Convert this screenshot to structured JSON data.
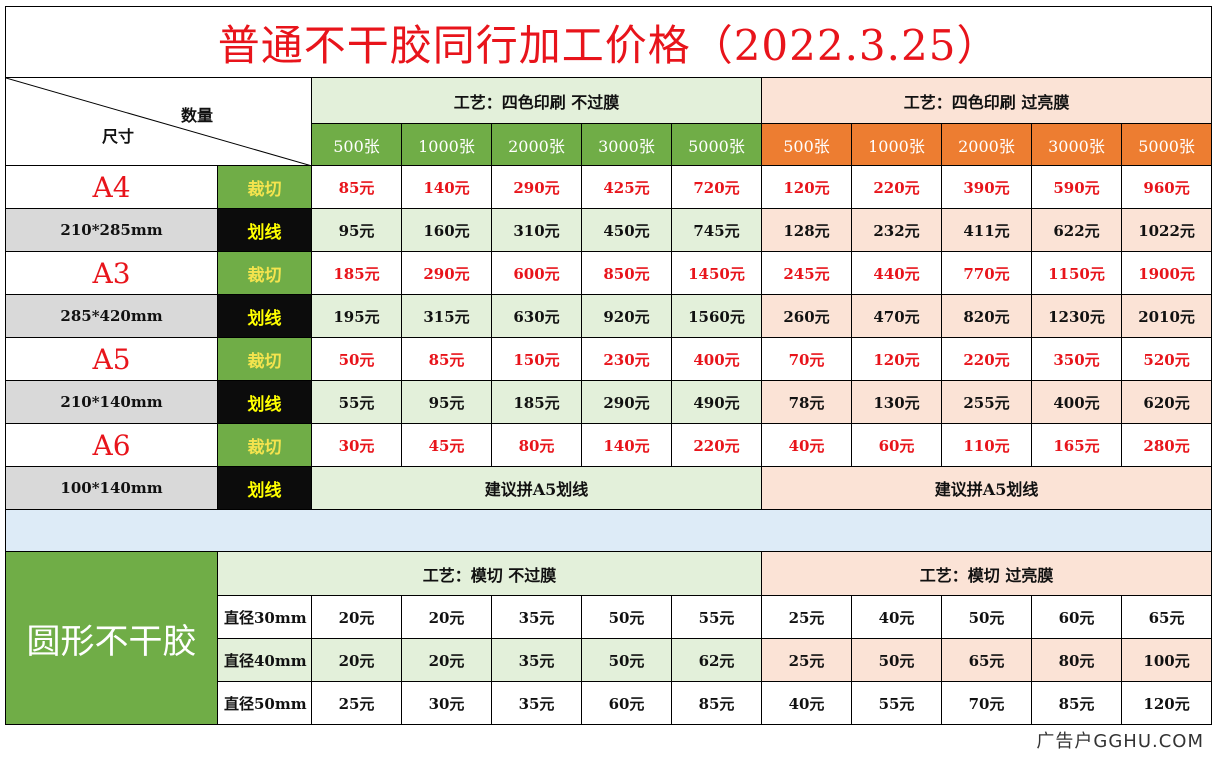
{
  "title": "普通不干胶同行加工价格（2022.3.25）",
  "corner": {
    "quantity_label": "数量",
    "size_label": "尺寸"
  },
  "rect_section": {
    "process_no_film": "工艺：四色印刷  不过膜",
    "process_film": "工艺：四色印刷  过亮膜",
    "quantities": [
      "500张",
      "1000张",
      "2000张",
      "3000张",
      "5000张"
    ],
    "cut_label": "裁切",
    "score_label": "划线",
    "suggestion_no_film": "建议拼A5划线",
    "suggestion_film": "建议拼A5划线",
    "sizes": [
      {
        "paper": "A4",
        "dimensions": "210*285mm",
        "cut_no_film": [
          "85元",
          "140元",
          "290元",
          "425元",
          "720元"
        ],
        "cut_film": [
          "120元",
          "220元",
          "390元",
          "590元",
          "960元"
        ],
        "score_no_film": [
          "95元",
          "160元",
          "310元",
          "450元",
          "745元"
        ],
        "score_film": [
          "128元",
          "232元",
          "411元",
          "622元",
          "1022元"
        ]
      },
      {
        "paper": "A3",
        "dimensions": "285*420mm",
        "cut_no_film": [
          "185元",
          "290元",
          "600元",
          "850元",
          "1450元"
        ],
        "cut_film": [
          "245元",
          "440元",
          "770元",
          "1150元",
          "1900元"
        ],
        "score_no_film": [
          "195元",
          "315元",
          "630元",
          "920元",
          "1560元"
        ],
        "score_film": [
          "260元",
          "470元",
          "820元",
          "1230元",
          "2010元"
        ]
      },
      {
        "paper": "A5",
        "dimensions": "210*140mm",
        "cut_no_film": [
          "50元",
          "85元",
          "150元",
          "230元",
          "400元"
        ],
        "cut_film": [
          "70元",
          "120元",
          "220元",
          "350元",
          "520元"
        ],
        "score_no_film": [
          "55元",
          "95元",
          "185元",
          "290元",
          "490元"
        ],
        "score_film": [
          "78元",
          "130元",
          "255元",
          "400元",
          "620元"
        ]
      },
      {
        "paper": "A6",
        "dimensions": "100*140mm",
        "cut_no_film": [
          "30元",
          "45元",
          "80元",
          "140元",
          "220元"
        ],
        "cut_film": [
          "40元",
          "60元",
          "110元",
          "165元",
          "280元"
        ]
      }
    ]
  },
  "round_section": {
    "label": "圆形不干胶",
    "process_no_film": "工艺：模切  不过膜",
    "process_film": "工艺：模切  过亮膜",
    "rows": [
      {
        "diameter": "直径30mm",
        "no_film": [
          "20元",
          "20元",
          "35元",
          "50元",
          "55元"
        ],
        "film": [
          "25元",
          "40元",
          "50元",
          "60元",
          "65元"
        ]
      },
      {
        "diameter": "直径40mm",
        "no_film": [
          "20元",
          "20元",
          "35元",
          "50元",
          "62元"
        ],
        "film": [
          "25元",
          "50元",
          "65元",
          "80元",
          "100元"
        ]
      },
      {
        "diameter": "直径50mm",
        "no_film": [
          "25元",
          "30元",
          "35元",
          "60元",
          "85元"
        ],
        "film": [
          "40元",
          "55元",
          "70元",
          "85元",
          "120元"
        ]
      }
    ]
  },
  "watermark": "广告户GGHU.COM",
  "colors": {
    "title_red": "#e8141b",
    "green_light": "#e3f0da",
    "green_header": "#70ad47",
    "orange_light": "#fbe3d6",
    "orange_header": "#ed7d31",
    "grey_row": "#d9d9d9",
    "separator_blue": "#ddebf7",
    "score_black": "#0c0c0c"
  }
}
